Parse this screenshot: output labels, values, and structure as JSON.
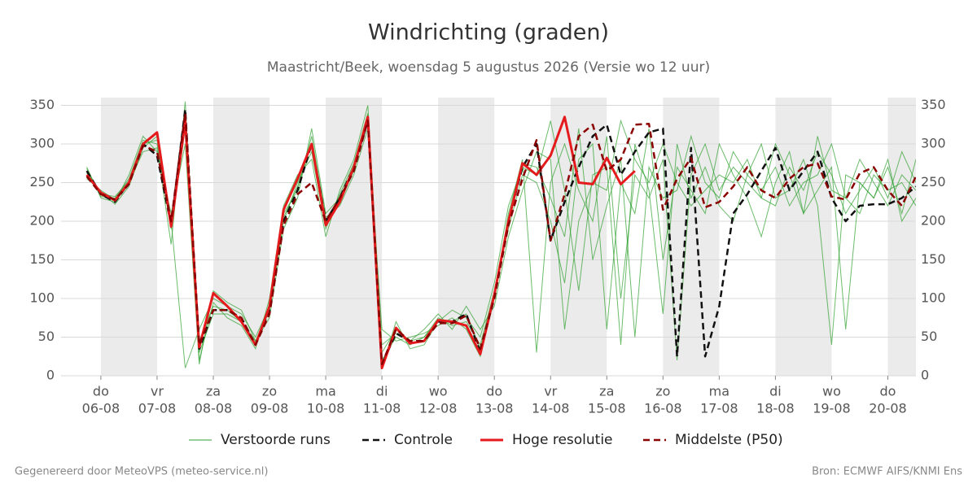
{
  "chart_data": {
    "type": "line",
    "title": "Windrichting (graden)",
    "subtitle": "Maastricht/Beek, woensdag  5 augustus 2026 (Versie wo 12 uur)",
    "footer_left": "Gegenereerd door MeteoVPS (meteo-service.nl)",
    "footer_right": "Bron: ECMWF AIFS/KNMI Ens",
    "x": [
      "2026-08-05T18:00",
      "2026-08-06T00:00",
      "2026-08-06T06:00",
      "2026-08-06T12:00",
      "2026-08-06T18:00",
      "2026-08-07T00:00",
      "2026-08-07T06:00",
      "2026-08-07T12:00",
      "2026-08-07T18:00",
      "2026-08-08T00:00",
      "2026-08-08T06:00",
      "2026-08-08T12:00",
      "2026-08-08T18:00",
      "2026-08-09T00:00",
      "2026-08-09T06:00",
      "2026-08-09T12:00",
      "2026-08-09T18:00",
      "2026-08-10T00:00",
      "2026-08-10T06:00",
      "2026-08-10T12:00",
      "2026-08-10T18:00",
      "2026-08-11T00:00",
      "2026-08-11T06:00",
      "2026-08-11T12:00",
      "2026-08-11T18:00",
      "2026-08-12T00:00",
      "2026-08-12T06:00",
      "2026-08-12T12:00",
      "2026-08-12T18:00",
      "2026-08-13T00:00",
      "2026-08-13T06:00",
      "2026-08-13T12:00",
      "2026-08-13T18:00",
      "2026-08-14T00:00",
      "2026-08-14T06:00",
      "2026-08-14T12:00",
      "2026-08-14T18:00",
      "2026-08-15T00:00",
      "2026-08-15T06:00",
      "2026-08-15T12:00",
      "2026-08-15T18:00",
      "2026-08-16T00:00",
      "2026-08-16T06:00",
      "2026-08-16T12:00",
      "2026-08-16T18:00",
      "2026-08-17T00:00",
      "2026-08-17T06:00",
      "2026-08-17T12:00",
      "2026-08-17T18:00",
      "2026-08-18T00:00",
      "2026-08-18T06:00",
      "2026-08-18T12:00",
      "2026-08-18T18:00",
      "2026-08-19T00:00",
      "2026-08-19T06:00",
      "2026-08-19T12:00",
      "2026-08-19T18:00",
      "2026-08-20T00:00",
      "2026-08-20T06:00",
      "2026-08-20T12:00"
    ],
    "xlim": [
      "2026-08-05T07:00",
      "2026-08-20T12:00"
    ],
    "xticks": [
      {
        "value": "2026-08-06T00:00",
        "label": "do",
        "sublabel": "06-08"
      },
      {
        "value": "2026-08-07T00:00",
        "label": "vr",
        "sublabel": "07-08"
      },
      {
        "value": "2026-08-08T00:00",
        "label": "za",
        "sublabel": "08-08"
      },
      {
        "value": "2026-08-09T00:00",
        "label": "zo",
        "sublabel": "09-08"
      },
      {
        "value": "2026-08-10T00:00",
        "label": "ma",
        "sublabel": "10-08"
      },
      {
        "value": "2026-08-11T00:00",
        "label": "di",
        "sublabel": "11-08"
      },
      {
        "value": "2026-08-12T00:00",
        "label": "wo",
        "sublabel": "12-08"
      },
      {
        "value": "2026-08-13T00:00",
        "label": "do",
        "sublabel": "13-08"
      },
      {
        "value": "2026-08-14T00:00",
        "label": "vr",
        "sublabel": "14-08"
      },
      {
        "value": "2026-08-15T00:00",
        "label": "za",
        "sublabel": "15-08"
      },
      {
        "value": "2026-08-16T00:00",
        "label": "zo",
        "sublabel": "16-08"
      },
      {
        "value": "2026-08-17T00:00",
        "label": "ma",
        "sublabel": "17-08"
      },
      {
        "value": "2026-08-18T00:00",
        "label": "di",
        "sublabel": "18-08"
      },
      {
        "value": "2026-08-19T00:00",
        "label": "wo",
        "sublabel": "19-08"
      },
      {
        "value": "2026-08-20T00:00",
        "label": "do",
        "sublabel": "20-08"
      }
    ],
    "ylim": [
      0,
      360
    ],
    "yticks": [
      0,
      50,
      100,
      150,
      200,
      250,
      300,
      350
    ],
    "grid": true,
    "ensemble": {
      "name": "Verstoorde runs",
      "color": "#2ca02c",
      "members": [
        [
          268,
          232,
          230,
          255,
          305,
          300,
          190,
          320,
          30,
          80,
          80,
          70,
          45,
          85,
          200,
          250,
          290,
          190,
          235,
          275,
          340,
          20,
          50,
          40,
          50,
          75,
          65,
          70,
          40,
          110,
          190,
          260,
          250,
          200,
          120,
          280,
          300,
          60,
          250,
          210,
          320,
          150,
          270,
          240,
          210,
          300,
          260,
          230,
          180,
          250,
          290,
          210,
          240,
          270,
          60,
          250,
          230,
          280,
          200,
          230
        ],
        [
          262,
          238,
          222,
          245,
          295,
          310,
          200,
          10,
          60,
          100,
          90,
          80,
          50,
          90,
          210,
          240,
          310,
          205,
          220,
          260,
          320,
          60,
          45,
          50,
          55,
          65,
          75,
          60,
          25,
          100,
          210,
          280,
          30,
          250,
          300,
          240,
          200,
          310,
          100,
          260,
          230,
          280,
          20,
          260,
          300,
          240,
          270,
          250,
          230,
          300,
          260,
          210,
          310,
          240,
          230,
          280,
          250,
          220,
          260,
          240
        ],
        [
          255,
          240,
          228,
          250,
          290,
          295,
          170,
          355,
          20,
          95,
          75,
          65,
          35,
          100,
          220,
          260,
          280,
          180,
          240,
          280,
          350,
          40,
          55,
          45,
          60,
          80,
          60,
          90,
          60,
          90,
          180,
          240,
          290,
          280,
          60,
          200,
          250,
          240,
          330,
          280,
          250,
          300,
          250,
          220,
          240,
          260,
          250,
          280,
          230,
          220,
          270,
          240,
          290,
          260,
          210,
          240,
          270,
          230,
          290,
          250
        ],
        [
          270,
          230,
          225,
          260,
          310,
          290,
          210,
          300,
          15,
          110,
          95,
          85,
          45,
          75,
          190,
          230,
          320,
          210,
          230,
          270,
          330,
          10,
          70,
          35,
          40,
          70,
          85,
          75,
          50,
          120,
          220,
          270,
          260,
          330,
          240,
          110,
          260,
          270,
          40,
          300,
          240,
          80,
          300,
          230,
          270,
          220,
          200,
          260,
          300,
          230,
          240,
          280,
          220,
          40,
          260,
          250,
          230,
          270,
          210,
          280
        ],
        [
          265,
          235,
          232,
          252,
          300,
          305,
          195,
          330,
          45,
          90,
          85,
          70,
          40,
          85,
          205,
          245,
          300,
          195,
          225,
          265,
          335,
          30,
          60,
          45,
          50,
          70,
          70,
          80,
          35,
          105,
          200,
          275,
          270,
          230,
          180,
          320,
          150,
          220,
          280,
          50,
          270,
          230,
          240,
          310,
          250,
          230,
          290,
          260,
          240,
          270,
          220,
          250,
          260,
          300,
          230,
          210,
          260,
          240,
          250,
          220
        ]
      ]
    },
    "series": [
      {
        "name": "Controle",
        "color": "#111111",
        "dash": true,
        "values": [
          265,
          235,
          225,
          250,
          300,
          285,
          195,
          345,
          35,
          85,
          85,
          75,
          40,
          85,
          200,
          240,
          300,
          200,
          230,
          270,
          330,
          15,
          55,
          45,
          45,
          70,
          70,
          80,
          30,
          105,
          200,
          270,
          300,
          175,
          225,
          270,
          310,
          325,
          260,
          290,
          315,
          320,
          25,
          295,
          25,
          90,
          210,
          235,
          265,
          295,
          240,
          265,
          290,
          230,
          200,
          220,
          222,
          222,
          230,
          245
        ]
      },
      {
        "name": "Hoge resolutie",
        "color": "#e41a1c",
        "dash": false,
        "values": [
          260,
          237,
          227,
          250,
          300,
          315,
          193,
          330,
          37,
          107,
          90,
          70,
          40,
          90,
          215,
          255,
          300,
          195,
          225,
          270,
          335,
          10,
          62,
          42,
          45,
          72,
          70,
          65,
          28,
          105,
          200,
          275,
          260,
          285,
          335,
          250,
          248,
          282,
          248,
          265,
          null,
          null,
          null,
          null,
          null,
          null,
          null,
          null,
          null,
          null,
          null,
          null,
          null,
          null,
          null,
          null,
          null,
          null,
          null,
          null
        ]
      },
      {
        "name": "Middelste (P50)",
        "color": "#8b0000",
        "dash": true,
        "values": [
          258,
          235,
          228,
          248,
          298,
          290,
          200,
          340,
          40,
          85,
          85,
          75,
          40,
          80,
          195,
          235,
          250,
          200,
          230,
          265,
          330,
          15,
          60,
          45,
          45,
          68,
          68,
          78,
          35,
          100,
          195,
          255,
          305,
          175,
          235,
          310,
          325,
          265,
          280,
          325,
          326,
          215,
          255,
          282,
          218,
          225,
          245,
          270,
          240,
          230,
          255,
          270,
          275,
          232,
          228,
          262,
          270,
          240,
          220,
          258
        ]
      }
    ]
  }
}
